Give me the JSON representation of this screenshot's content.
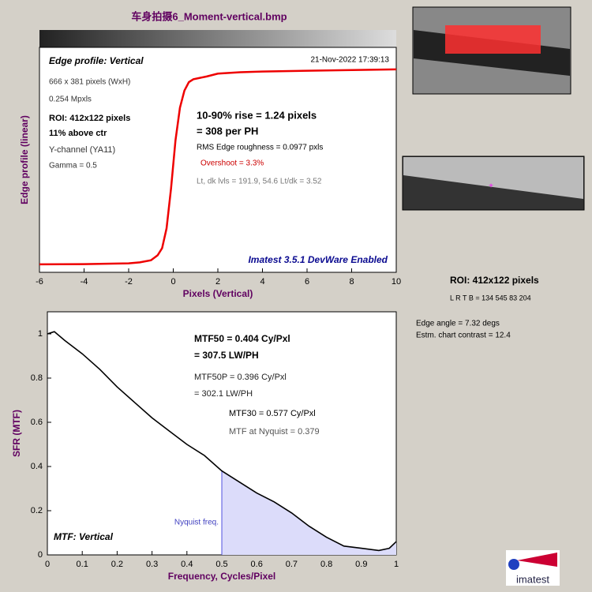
{
  "window_title": "车身拍摄6_Moment-vertical.bmp",
  "roi_title": "ROI:  412x122 pixels",
  "roi_coords": "L R  T B = 134 545  83 204",
  "edge_angle": "Edge angle = 7.32 degs",
  "chart_contrast": "Estm. chart contrast = 12.4",
  "logo": "imatest",
  "chart_data": [
    {
      "type": "line",
      "title": "Edge profile: Vertical",
      "timestamp": "21-Nov-2022 17:39:13",
      "xlabel": "Pixels (Vertical)",
      "ylabel": "Edge profile (linear)",
      "watermark": "Imatest 3.5.1 DevWare Enabled",
      "annotations": [
        "666 x 381 pixels (WxH)",
        "0.254 Mpxls",
        "ROI:  412x122 pixels",
        "11% above ctr",
        "Y-channel  (YA11)",
        "Gamma = 0.5",
        "10-90% rise = 1.24 pixels",
        "= 308 per PH",
        "RMS Edge roughness = 0.0977 pxls",
        "Overshoot = 3.3%",
        "Lt, dk lvls = 191.9, 54.6   Lt/dk = 3.52"
      ],
      "x": [
        -6,
        -4,
        -2,
        -1.5,
        -1,
        -0.7,
        -0.5,
        -0.3,
        -0.1,
        0,
        0.1,
        0.3,
        0.5,
        0.7,
        0.9,
        1.2,
        1.5,
        2,
        3,
        4,
        6,
        8,
        10
      ],
      "series": [
        {
          "name": "Edge profile",
          "color": "#ee0000",
          "values": [
            54.6,
            54.8,
            55.3,
            56,
            57.5,
            61,
            66,
            80,
            108,
            125,
            142,
            165,
            177,
            183,
            185,
            186,
            187,
            189,
            190,
            190.5,
            191,
            191.5,
            192
          ]
        }
      ],
      "xlim": [
        -6,
        10
      ],
      "xticks": [
        -6,
        -4,
        -2,
        0,
        2,
        4,
        6,
        8,
        10
      ],
      "ylim": [
        49,
        207.5
      ]
    },
    {
      "type": "line",
      "legend": "MTF: Vertical",
      "xlabel": "Frequency, Cycles/Pixel",
      "ylabel": "SFR (MTF)",
      "annotations": [
        "MTF50 = 0.404 Cy/Pxl",
        "= 307.5 LW/PH",
        "MTF50P = 0.396 Cy/Pxl",
        "= 302.1 LW/PH",
        "MTF30 = 0.577 Cy/Pxl",
        "MTF at Nyquist = 0.379"
      ],
      "nyquist": {
        "x": 0.5,
        "label": "Nyquist freq."
      },
      "x": [
        0,
        0.02,
        0.05,
        0.1,
        0.15,
        0.2,
        0.25,
        0.3,
        0.35,
        0.4,
        0.45,
        0.5,
        0.55,
        0.6,
        0.65,
        0.7,
        0.75,
        0.8,
        0.85,
        0.9,
        0.95,
        0.98,
        1
      ],
      "series": [
        {
          "name": "MTF",
          "color": "#000000",
          "values": [
            1,
            1.01,
            0.97,
            0.91,
            0.84,
            0.76,
            0.69,
            0.62,
            0.56,
            0.5,
            0.45,
            0.38,
            0.33,
            0.28,
            0.24,
            0.19,
            0.13,
            0.08,
            0.04,
            0.03,
            0.02,
            0.03,
            0.06
          ]
        }
      ],
      "xlim": [
        0,
        1
      ],
      "xticks": [
        0,
        0.1,
        0.2,
        0.3,
        0.4,
        0.5,
        0.6,
        0.7,
        0.8,
        0.9,
        1
      ],
      "ylim": [
        0,
        1.1
      ],
      "yticks": [
        0,
        0.2,
        0.4,
        0.6,
        0.8,
        1
      ]
    }
  ]
}
